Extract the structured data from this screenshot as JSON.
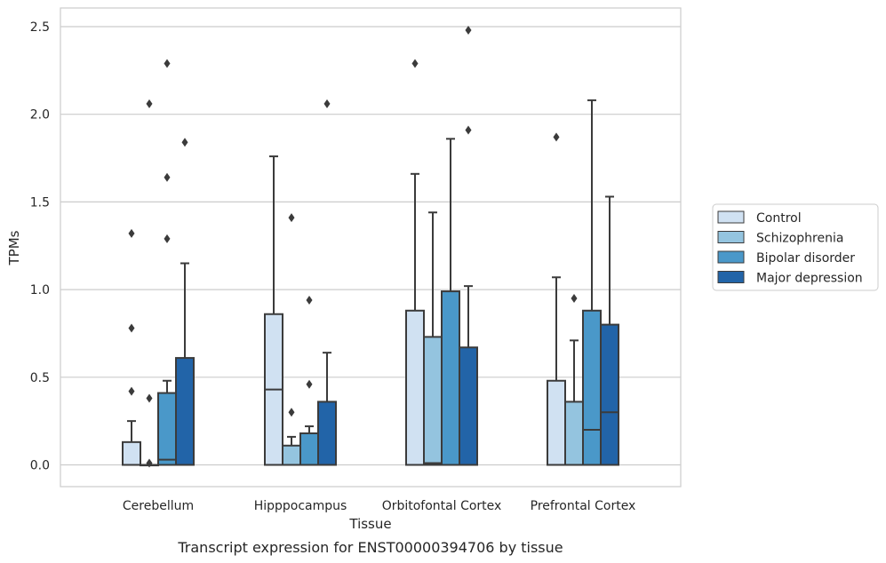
{
  "chart_data": {
    "type": "box",
    "caption": "Transcript expression for ENST00000394706 by tissue",
    "xlabel": "Tissue",
    "ylabel": "TPMs",
    "ylim": [
      -0.12,
      2.62
    ],
    "yticks": [
      0.0,
      0.5,
      1.0,
      1.5,
      2.0,
      2.5
    ],
    "ytick_labels": [
      "0.0",
      "0.5",
      "1.0",
      "1.5",
      "2.0",
      "2.5"
    ],
    "grid": "horizontal",
    "legend_position": "right",
    "categories": [
      "Cerebellum",
      "Hipppocampus",
      "Orbitofontal Cortex",
      "Prefrontal Cortex"
    ],
    "series": [
      {
        "name": "Control",
        "color": "#d0e1f2",
        "boxes": [
          {
            "q1": 0.0,
            "median": 0.0,
            "q3": 0.13,
            "whisker_low": 0.0,
            "whisker_high": 0.25,
            "outliers": [
              0.42,
              0.78,
              1.32
            ]
          },
          {
            "q1": 0.0,
            "median": 0.43,
            "q3": 0.86,
            "whisker_low": 0.0,
            "whisker_high": 1.76,
            "outliers": []
          },
          {
            "q1": 0.0,
            "median": 0.0,
            "q3": 0.88,
            "whisker_low": 0.0,
            "whisker_high": 1.66,
            "outliers": [
              2.29
            ]
          },
          {
            "q1": 0.0,
            "median": 0.0,
            "q3": 0.48,
            "whisker_low": 0.0,
            "whisker_high": 1.07,
            "outliers": [
              1.87
            ]
          }
        ]
      },
      {
        "name": "Schizophrenia",
        "color": "#94c4df",
        "boxes": [
          {
            "q1": 0.0,
            "median": 0.0,
            "q3": 0.0,
            "whisker_low": 0.0,
            "whisker_high": 0.0,
            "outliers": [
              0.01,
              0.38,
              2.06
            ]
          },
          {
            "q1": 0.0,
            "median": 0.0,
            "q3": 0.11,
            "whisker_low": 0.0,
            "whisker_high": 0.16,
            "outliers": [
              0.3,
              1.41
            ]
          },
          {
            "q1": 0.0,
            "median": 0.01,
            "q3": 0.73,
            "whisker_low": 0.0,
            "whisker_high": 1.44,
            "outliers": []
          },
          {
            "q1": 0.0,
            "median": 0.0,
            "q3": 0.36,
            "whisker_low": 0.0,
            "whisker_high": 0.71,
            "outliers": [
              0.95
            ]
          }
        ]
      },
      {
        "name": "Bipolar disorder",
        "color": "#4a98c9",
        "boxes": [
          {
            "q1": 0.0,
            "median": 0.03,
            "q3": 0.41,
            "whisker_low": 0.0,
            "whisker_high": 0.48,
            "outliers": [
              1.29,
              1.64,
              2.29
            ]
          },
          {
            "q1": 0.0,
            "median": 0.0,
            "q3": 0.18,
            "whisker_low": 0.0,
            "whisker_high": 0.22,
            "outliers": [
              0.46,
              0.94
            ]
          },
          {
            "q1": 0.0,
            "median": 0.0,
            "q3": 0.99,
            "whisker_low": 0.0,
            "whisker_high": 1.86,
            "outliers": []
          },
          {
            "q1": 0.0,
            "median": 0.2,
            "q3": 0.88,
            "whisker_low": 0.0,
            "whisker_high": 2.08,
            "outliers": []
          }
        ]
      },
      {
        "name": "Major depression",
        "color": "#2264a8",
        "boxes": [
          {
            "q1": 0.0,
            "median": 0.0,
            "q3": 0.61,
            "whisker_low": 0.0,
            "whisker_high": 1.15,
            "outliers": [
              1.84
            ]
          },
          {
            "q1": 0.0,
            "median": 0.0,
            "q3": 0.36,
            "whisker_low": 0.0,
            "whisker_high": 0.64,
            "outliers": [
              2.06
            ]
          },
          {
            "q1": 0.0,
            "median": 0.0,
            "q3": 0.67,
            "whisker_low": 0.0,
            "whisker_high": 1.02,
            "outliers": [
              1.91,
              2.48
            ]
          },
          {
            "q1": 0.0,
            "median": 0.3,
            "q3": 0.8,
            "whisker_low": 0.0,
            "whisker_high": 1.53,
            "outliers": []
          }
        ]
      }
    ]
  }
}
